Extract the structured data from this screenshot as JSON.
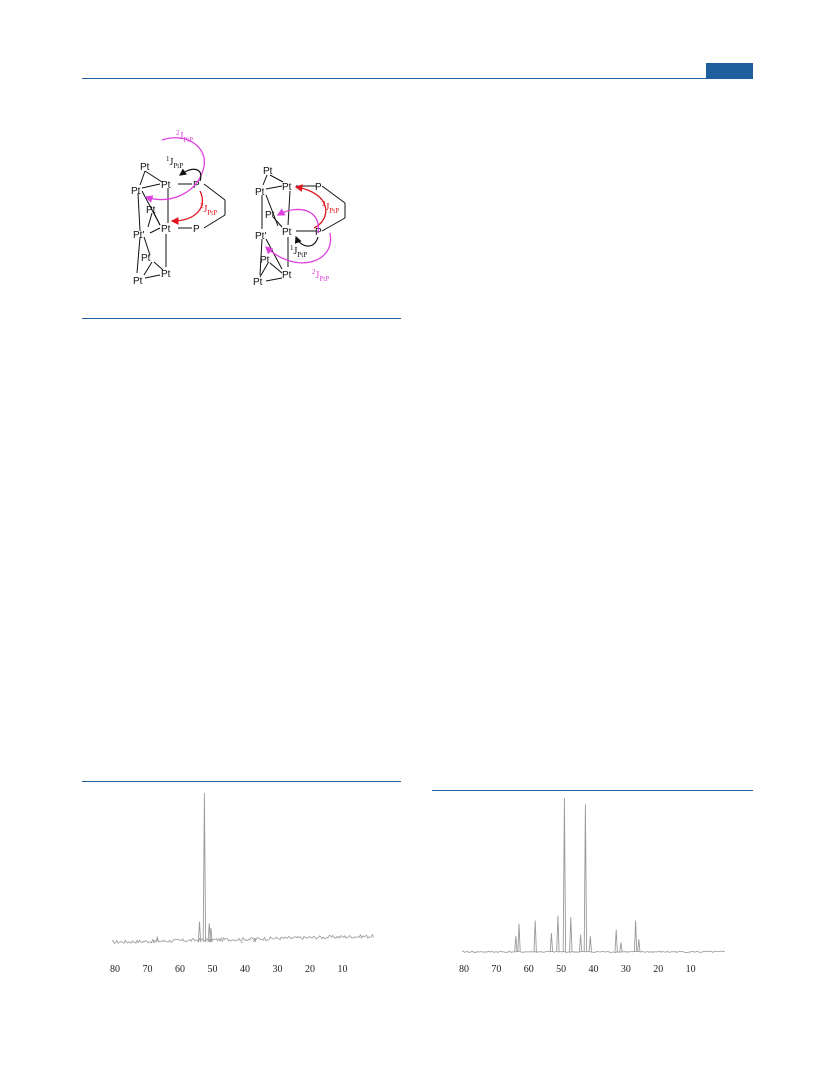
{
  "colors": {
    "accent": "#1f5f9e",
    "coupling_two_bond_magenta": "#e040e0",
    "coupling_two_bond_red": "#e0141e",
    "spectrum": "#9a9a9a"
  },
  "scheme": {
    "atom_pt": "Pt",
    "atom_pt_prime": "Pt'",
    "atom_p": "P",
    "j_letter": "J",
    "j_sub": "PtP",
    "one_bond_sup": "1",
    "two_bond_sup": "2"
  },
  "spectra": [
    {
      "axis_ticks": [
        "80",
        "70",
        "60",
        "50",
        "40",
        "30",
        "20",
        "10"
      ]
    },
    {
      "axis_ticks": [
        "80",
        "70",
        "60",
        "50",
        "40",
        "30",
        "20",
        "10"
      ]
    }
  ],
  "chart_data": [
    {
      "type": "line",
      "xlabel": "",
      "ylabel": "",
      "xlim": [
        80,
        0
      ],
      "x_reversed": true,
      "ticks": [
        80,
        70,
        60,
        50,
        40,
        30,
        20,
        10
      ],
      "baseline": 0.05,
      "peaks": [
        {
          "x": 68,
          "y": 0.05
        },
        {
          "x": 67,
          "y": 0.08
        },
        {
          "x": 54,
          "y": 0.18
        },
        {
          "x": 52.5,
          "y": 1.0
        },
        {
          "x": 51,
          "y": 0.17
        },
        {
          "x": 50.5,
          "y": 0.14
        },
        {
          "x": 41,
          "y": 0.05
        },
        {
          "x": 37,
          "y": 0.07
        }
      ]
    },
    {
      "type": "line",
      "xlabel": "",
      "ylabel": "",
      "xlim": [
        80,
        0
      ],
      "x_reversed": true,
      "ticks": [
        80,
        70,
        60,
        50,
        40,
        30,
        20,
        10
      ],
      "baseline": 0.02,
      "peaks": [
        {
          "x": 64,
          "y": 0.12
        },
        {
          "x": 63,
          "y": 0.2
        },
        {
          "x": 58,
          "y": 0.22
        },
        {
          "x": 53,
          "y": 0.14
        },
        {
          "x": 51,
          "y": 0.25
        },
        {
          "x": 49,
          "y": 1.0
        },
        {
          "x": 47,
          "y": 0.24
        },
        {
          "x": 44,
          "y": 0.13
        },
        {
          "x": 42.5,
          "y": 0.96
        },
        {
          "x": 41,
          "y": 0.12
        },
        {
          "x": 33,
          "y": 0.16
        },
        {
          "x": 31.5,
          "y": 0.08
        },
        {
          "x": 27,
          "y": 0.22
        },
        {
          "x": 26,
          "y": 0.1
        }
      ]
    }
  ]
}
